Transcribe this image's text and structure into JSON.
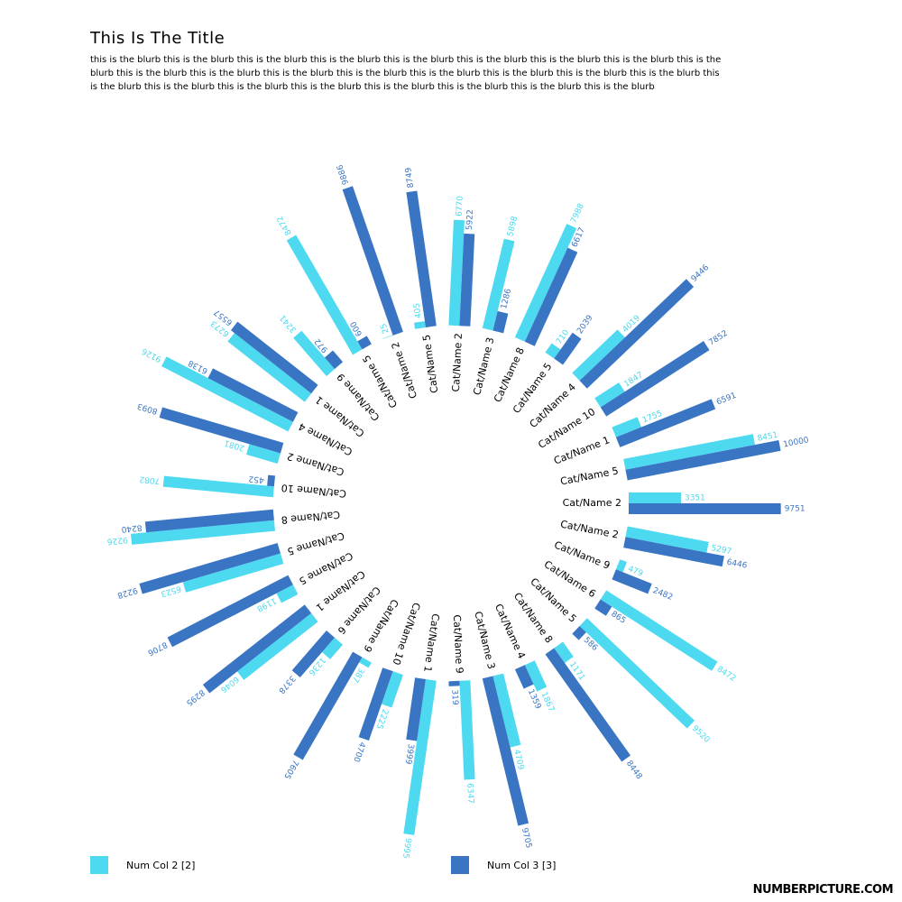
{
  "chart_data": {
    "type": "radial_bar",
    "title": "This Is The Title",
    "subtitle": "this is the blurb this is the blurb this is the blurb this is the blurb this is the blurb this is the blurb this is the blurb this is the blurb this is the blurb this is the blurb this is the blurb this is the blurb this is the blurb this is the blurb this is the blurb this is the blurb this is the blurb this is the blurb this is the blurb this is the blurb this is the blurb this is the blurb this is the blurb this is the blurb this is the blurb",
    "categories": [
      "Cat/Name 2",
      "Cat/Name 2",
      "Cat/Name 9",
      "Cat/Name 6",
      "Cat/Name 5",
      "Cat/Name 8",
      "Cat/Name 4",
      "Cat/Name 3",
      "Cat/Name 9",
      "Cat/Name 1",
      "Cat/Name 10",
      "Cat/Name 9",
      "Cat/Name 6",
      "Cat/Name 1",
      "Cat/Name 5",
      "Cat/Name 5",
      "Cat/Name 8",
      "Cat/Name 10",
      "Cat/Name 2",
      "Cat/Name 4",
      "Cat/Name 1",
      "Cat/Name 9",
      "Cat/Name 5",
      "Cat/Name 2",
      "Cat/Name 5",
      "Cat/Name 2",
      "Cat/Name 3",
      "Cat/Name 8",
      "Cat/Name 5",
      "Cat/Name 4",
      "Cat/Name 10",
      "Cat/Name 1",
      "Cat/Name 5"
    ],
    "series": [
      {
        "name": "Num Col 2 [2]",
        "color": "#4dd9f0",
        "values": [
          3351,
          5297,
          479,
          8472,
          9520,
          1171,
          1867,
          4709,
          6347,
          9995,
          2225,
          387,
          1236,
          6046,
          1198,
          6523,
          9226,
          7082,
          2081,
          9126,
          6273,
          3241,
          8472,
          25,
          405,
          6770,
          5898,
          7988,
          710,
          4019,
          1847,
          1755,
          8451
        ]
      },
      {
        "name": "Num Col 3 [3]",
        "color": "#3a75c4",
        "values": [
          9751,
          6446,
          2482,
          865,
          586,
          8448,
          1359,
          9705,
          319,
          3999,
          4700,
          7605,
          3378,
          8295,
          8706,
          9228,
          8240,
          452,
          8093,
          6138,
          6557,
          972,
          600,
          9886,
          8749,
          5922,
          1286,
          6617,
          2039,
          9446,
          7852,
          6591,
          10000
        ]
      }
    ],
    "ylim": [
      0,
      10000
    ],
    "footer": "NUMBERPICTURE.COM"
  }
}
